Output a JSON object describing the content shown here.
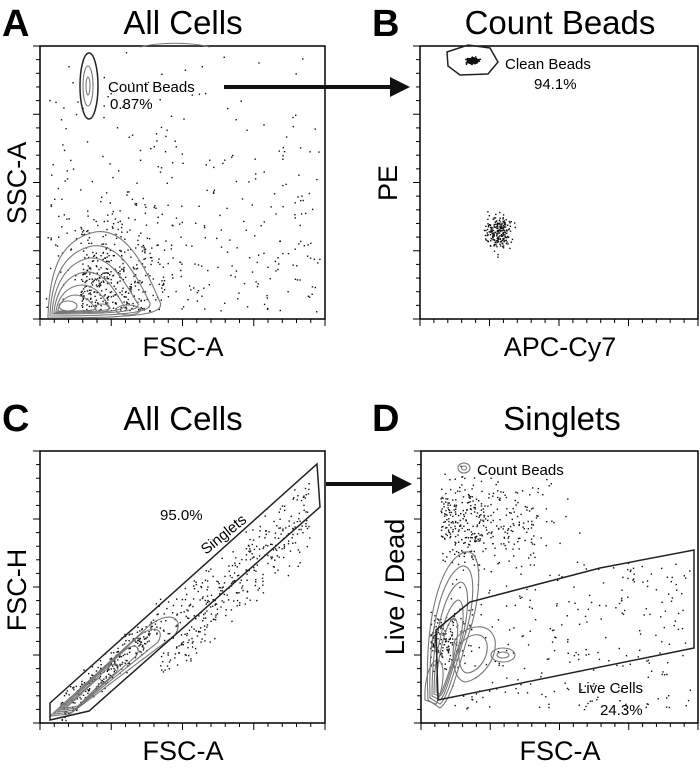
{
  "colors": {
    "ink": "#000000",
    "contour": "#777777",
    "background": "#ffffff"
  },
  "panels": {
    "A": {
      "letter": "A",
      "title": "All Cells",
      "xlabel": "FSC-A",
      "ylabel": "SSC-A",
      "gate": {
        "name": "Count Beads",
        "percent": "0.87%"
      }
    },
    "B": {
      "letter": "B",
      "title": "Count Beads",
      "xlabel": "APC-Cy7",
      "ylabel": "PE",
      "gate": {
        "name": "Clean Beads",
        "percent": "94.1%"
      }
    },
    "C": {
      "letter": "C",
      "title": "All Cells",
      "xlabel": "FSC-A",
      "ylabel": "FSC-H",
      "gate": {
        "name": "Singlets",
        "percent": "95.0%"
      }
    },
    "D": {
      "letter": "D",
      "title": "Singlets",
      "xlabel": "FSC-A",
      "ylabel": "Live / Dead",
      "gates": [
        {
          "name": "Count Beads"
        },
        {
          "name": "Live Cells",
          "percent": "24.3%"
        }
      ]
    }
  }
}
